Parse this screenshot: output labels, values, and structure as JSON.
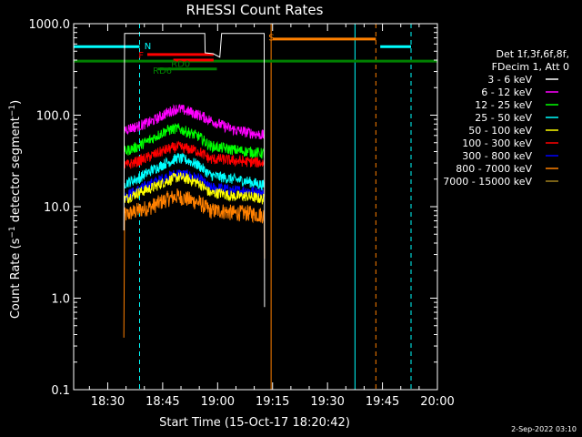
{
  "chart_data": {
    "type": "line",
    "title": "RHESSI Count Rates",
    "xlabel": "Start Time (15-Oct-17 18:20:42)",
    "ylabel_main": "Count Rate (s",
    "ylabel_sup1": "−1",
    "ylabel_mid": " detector segment",
    "ylabel_sup2": "−1",
    "ylabel_end": ")",
    "timestamp": "2-Sep-2022 03:10",
    "y_scale": "log",
    "x_range_min": [
      20.7,
      120
    ],
    "y_range": [
      0.1,
      1000
    ],
    "x_ticks": [
      {
        "min": 30,
        "label": "18:30"
      },
      {
        "min": 45,
        "label": "18:45"
      },
      {
        "min": 60,
        "label": "19:00"
      },
      {
        "min": 75,
        "label": "19:15"
      },
      {
        "min": 90,
        "label": "19:30"
      },
      {
        "min": 105,
        "label": "19:45"
      },
      {
        "min": 120,
        "label": "20:00"
      }
    ],
    "y_ticks": [
      {
        "value": 0.1,
        "label": "0.1"
      },
      {
        "value": 1,
        "label": "1.0"
      },
      {
        "value": 10,
        "label": "10.0"
      },
      {
        "value": 100,
        "label": "100.0"
      },
      {
        "value": 1000,
        "label": "1000.0"
      }
    ],
    "legend_header": [
      "Det 1f,3f,6f,8f,",
      "FDecim 1, Att 0"
    ],
    "series": [
      {
        "name": "3 - 6 keV",
        "color": "#ffffff",
        "points": [
          [
            34.4,
            5.5
          ],
          [
            34.6,
            780
          ],
          [
            56.5,
            780
          ],
          [
            56.6,
            480
          ],
          [
            58.8,
            470
          ],
          [
            60.6,
            430
          ],
          [
            61.1,
            780
          ],
          [
            72.7,
            780
          ],
          [
            72.8,
            0.8
          ]
        ]
      },
      {
        "name": "6 - 12 keV",
        "color": "#ff00ff",
        "points": [
          [
            34.6,
            70
          ],
          [
            38,
            75
          ],
          [
            42,
            85
          ],
          [
            46,
            105
          ],
          [
            49,
            118
          ],
          [
            52,
            110
          ],
          [
            55,
            100
          ],
          [
            58,
            88
          ],
          [
            61,
            78
          ],
          [
            64,
            70
          ],
          [
            68,
            65
          ],
          [
            72.7,
            60
          ]
        ]
      },
      {
        "name": "12 - 25 keV",
        "color": "#00ff00",
        "points": [
          [
            34.6,
            40
          ],
          [
            38,
            45
          ],
          [
            42,
            55
          ],
          [
            46,
            68
          ],
          [
            49,
            72
          ],
          [
            52,
            65
          ],
          [
            55,
            58
          ],
          [
            58,
            46
          ],
          [
            61,
            44
          ],
          [
            64,
            42
          ],
          [
            68,
            40
          ],
          [
            72.7,
            38
          ]
        ]
      },
      {
        "name": "25 - 50 keV",
        "color": "#00ffff",
        "points": [
          [
            34.6,
            18
          ],
          [
            38,
            20
          ],
          [
            42,
            25
          ],
          [
            46,
            30
          ],
          [
            49,
            34
          ],
          [
            52,
            32
          ],
          [
            55,
            28
          ],
          [
            58,
            22
          ],
          [
            61,
            21
          ],
          [
            64,
            20
          ],
          [
            68,
            19
          ],
          [
            72.7,
            17
          ]
        ]
      },
      {
        "name": "50 - 100 keV",
        "color": "#ffff00",
        "points": [
          [
            34.6,
            12
          ],
          [
            38,
            14
          ],
          [
            42,
            16
          ],
          [
            46,
            19
          ],
          [
            49,
            21
          ],
          [
            52,
            20
          ],
          [
            55,
            18
          ],
          [
            58,
            14
          ],
          [
            61,
            14
          ],
          [
            64,
            13
          ],
          [
            68,
            13
          ],
          [
            72.7,
            12
          ]
        ]
      },
      {
        "name": "100 - 300 keV",
        "color": "#ff0000",
        "points": [
          [
            34.6,
            28
          ],
          [
            38,
            31
          ],
          [
            42,
            36
          ],
          [
            46,
            42
          ],
          [
            49,
            45
          ],
          [
            52,
            43
          ],
          [
            55,
            40
          ],
          [
            58,
            33
          ],
          [
            61,
            33
          ],
          [
            64,
            32
          ],
          [
            68,
            31
          ],
          [
            72.7,
            30
          ]
        ]
      },
      {
        "name": "300 - 800 keV",
        "color": "#0000ff",
        "points": [
          [
            34.6,
            13
          ],
          [
            38,
            15
          ],
          [
            42,
            18
          ],
          [
            46,
            21
          ],
          [
            49,
            23
          ],
          [
            52,
            22
          ],
          [
            55,
            20
          ],
          [
            58,
            16
          ],
          [
            61,
            16
          ],
          [
            64,
            15
          ],
          [
            68,
            15
          ],
          [
            72.7,
            14
          ]
        ]
      },
      {
        "name": "800 - 7000 keV",
        "color": "#ff8000",
        "points": [
          [
            34.4,
            0.37
          ],
          [
            34.6,
            8
          ],
          [
            38,
            9
          ],
          [
            42,
            10
          ],
          [
            46,
            12
          ],
          [
            49,
            13
          ],
          [
            52,
            12
          ],
          [
            55,
            11
          ],
          [
            58,
            9
          ],
          [
            61,
            9
          ],
          [
            64,
            8.5
          ],
          [
            68,
            8.5
          ],
          [
            72.7,
            8
          ]
        ]
      },
      {
        "name": "7000 - 15000 keV",
        "color": "#a0801e",
        "points": []
      }
    ],
    "vertical_lines": [
      {
        "min": 20.7,
        "color": "#00ffff",
        "style": "solid"
      },
      {
        "min": 38.7,
        "color": "#00ffff",
        "style": "dash"
      },
      {
        "min": 74.6,
        "color": "#ff8000",
        "style": "solid"
      },
      {
        "min": 97.5,
        "color": "#00ffff",
        "style": "solid"
      },
      {
        "min": 103.2,
        "color": "#ff8000",
        "style": "dash"
      },
      {
        "min": 112.8,
        "color": "#00ffff",
        "style": "dash"
      }
    ],
    "flag_bars": [
      {
        "start": 20.7,
        "end": 38.7,
        "value": 560,
        "color": "#00ffff"
      },
      {
        "start": 104.4,
        "end": 112.8,
        "value": 560,
        "color": "#00ffff"
      },
      {
        "start": 75,
        "end": 103.2,
        "value": 680,
        "color": "#ff8000"
      },
      {
        "start": 20.7,
        "end": 120,
        "value": 390,
        "color": "#008000"
      },
      {
        "start": 40.8,
        "end": 58.9,
        "value": 460,
        "color": "#ff0000"
      },
      {
        "start": 47.9,
        "end": 58.9,
        "value": 400,
        "color": "#ff0000"
      },
      {
        "start": 43.7,
        "end": 59.8,
        "value": 320,
        "color": "#008000"
      }
    ],
    "flag_labels": [
      {
        "text": "N",
        "min": 40,
        "value": 580,
        "color": "#00ffff"
      },
      {
        "text": "F",
        "min": 38.4,
        "value": 460,
        "color": "#ff0000"
      },
      {
        "text": "RD0",
        "min": 47.3,
        "value": 370,
        "color": "#008000"
      },
      {
        "text": "RD6",
        "min": 42.3,
        "value": 310,
        "color": "#008000"
      },
      {
        "text": "S",
        "min": 73.9,
        "value": 720,
        "color": "#ff8000"
      }
    ]
  }
}
